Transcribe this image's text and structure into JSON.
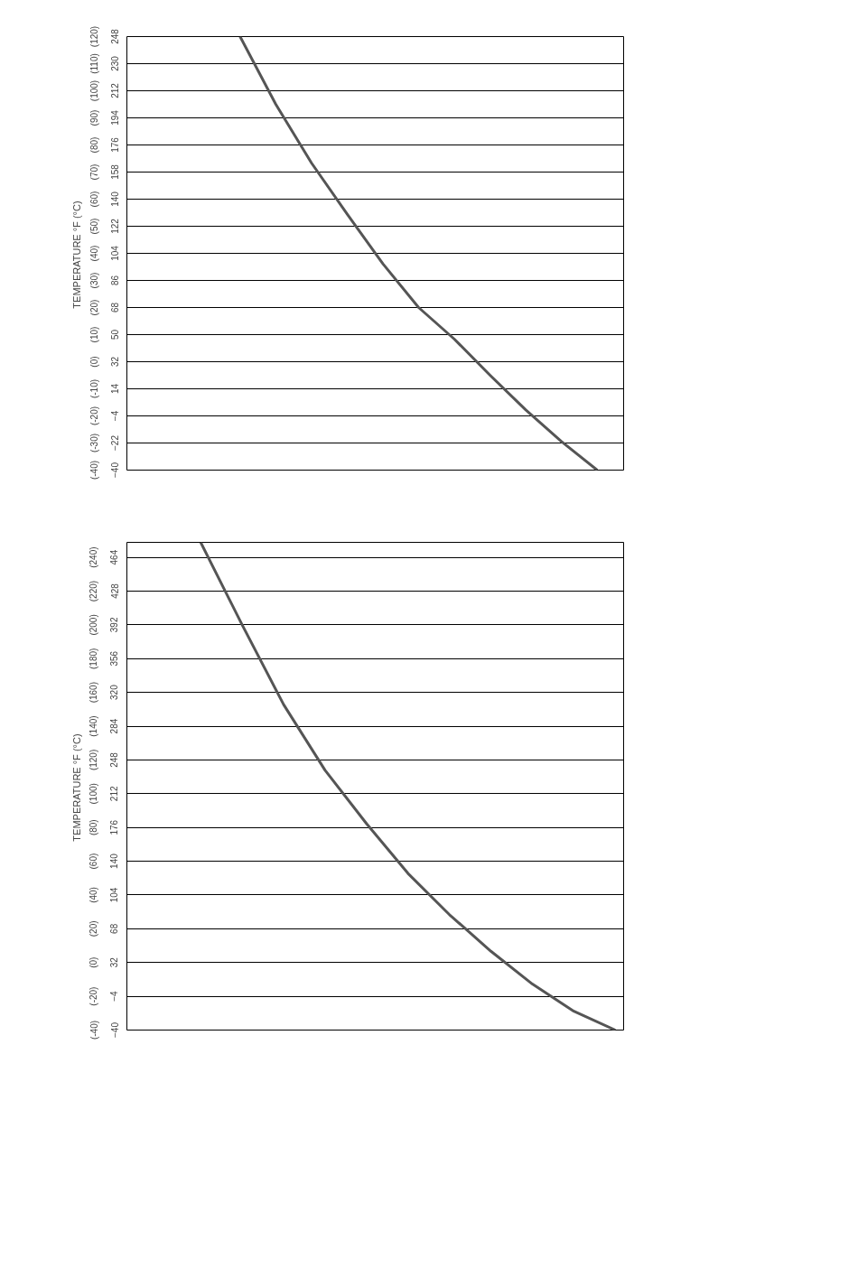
{
  "chart_data": [
    {
      "type": "line",
      "y2label": "TEMPERATURE  °F (°C)",
      "categories": [
        null,
        null,
        null,
        null,
        null,
        null,
        null,
        null,
        null,
        null,
        null
      ],
      "values": [
        248,
        203,
        164,
        130,
        97,
        68,
        47,
        23,
        0,
        -21,
        -40
      ],
      "color": "#555555",
      "ylim": [
        -40,
        248
      ],
      "yticks": [
        -40,
        -22,
        -4,
        14,
        32,
        50,
        68,
        86,
        104,
        122,
        140,
        158,
        176,
        194,
        212,
        230,
        248
      ],
      "y2lim": [
        -40,
        120
      ],
      "y2ticks": [
        {
          "value": -40,
          "label": "(-40)"
        },
        {
          "value": -30,
          "label": "(-30)"
        },
        {
          "value": -20,
          "label": "(-20)"
        },
        {
          "value": -10,
          "label": "(-10)"
        },
        {
          "value": 0,
          "label": "(0)"
        },
        {
          "value": 10,
          "label": "(10)"
        },
        {
          "value": 20,
          "label": "(20)"
        },
        {
          "value": 30,
          "label": "(30)"
        },
        {
          "value": 40,
          "label": "(40)"
        },
        {
          "value": 50,
          "label": "(50)"
        },
        {
          "value": 60,
          "label": "(60)"
        },
        {
          "value": 70,
          "label": "(70)"
        },
        {
          "value": 80,
          "label": "(80)"
        },
        {
          "value": 90,
          "label": "(90)"
        },
        {
          "value": 100,
          "label": "(100)"
        },
        {
          "value": 110,
          "label": "(110)"
        },
        {
          "value": 120,
          "label": "(120)"
        }
      ],
      "grid": "y",
      "tick_labels": "y"
    },
    {
      "type": "line",
      "y2label": "TEMPERATURE  °F (°C)",
      "categories": [
        null,
        null,
        null,
        null,
        null,
        null,
        null,
        null,
        null,
        null,
        null
      ],
      "values": [
        480,
        392,
        307,
        237,
        180,
        127,
        83,
        44,
        9,
        -20,
        -40
      ],
      "color": "#555555",
      "ylim": [
        -40,
        480
      ],
      "yticks": [
        -40,
        -4,
        32,
        68,
        104,
        140,
        176,
        212,
        248,
        284,
        320,
        356,
        392,
        428,
        464
      ],
      "y2lim": [
        -40,
        248.9
      ],
      "y2ticks": [
        {
          "value": -40,
          "label": "(-40)"
        },
        {
          "value": -20,
          "label": "(-20)"
        },
        {
          "value": 0,
          "label": "(0)"
        },
        {
          "value": 20,
          "label": "(20)"
        },
        {
          "value": 40,
          "label": "(40)"
        },
        {
          "value": 60,
          "label": "(60)"
        },
        {
          "value": 80,
          "label": "(80)"
        },
        {
          "value": 100,
          "label": "(100)"
        },
        {
          "value": 120,
          "label": "(120)"
        },
        {
          "value": 140,
          "label": "(140)"
        },
        {
          "value": 160,
          "label": "(160)"
        },
        {
          "value": 180,
          "label": "(180)"
        },
        {
          "value": 200,
          "label": "(200)"
        },
        {
          "value": 220,
          "label": "(220)"
        },
        {
          "value": 240,
          "label": "(240)"
        }
      ],
      "grid": "y",
      "tick_labels": "y"
    }
  ]
}
